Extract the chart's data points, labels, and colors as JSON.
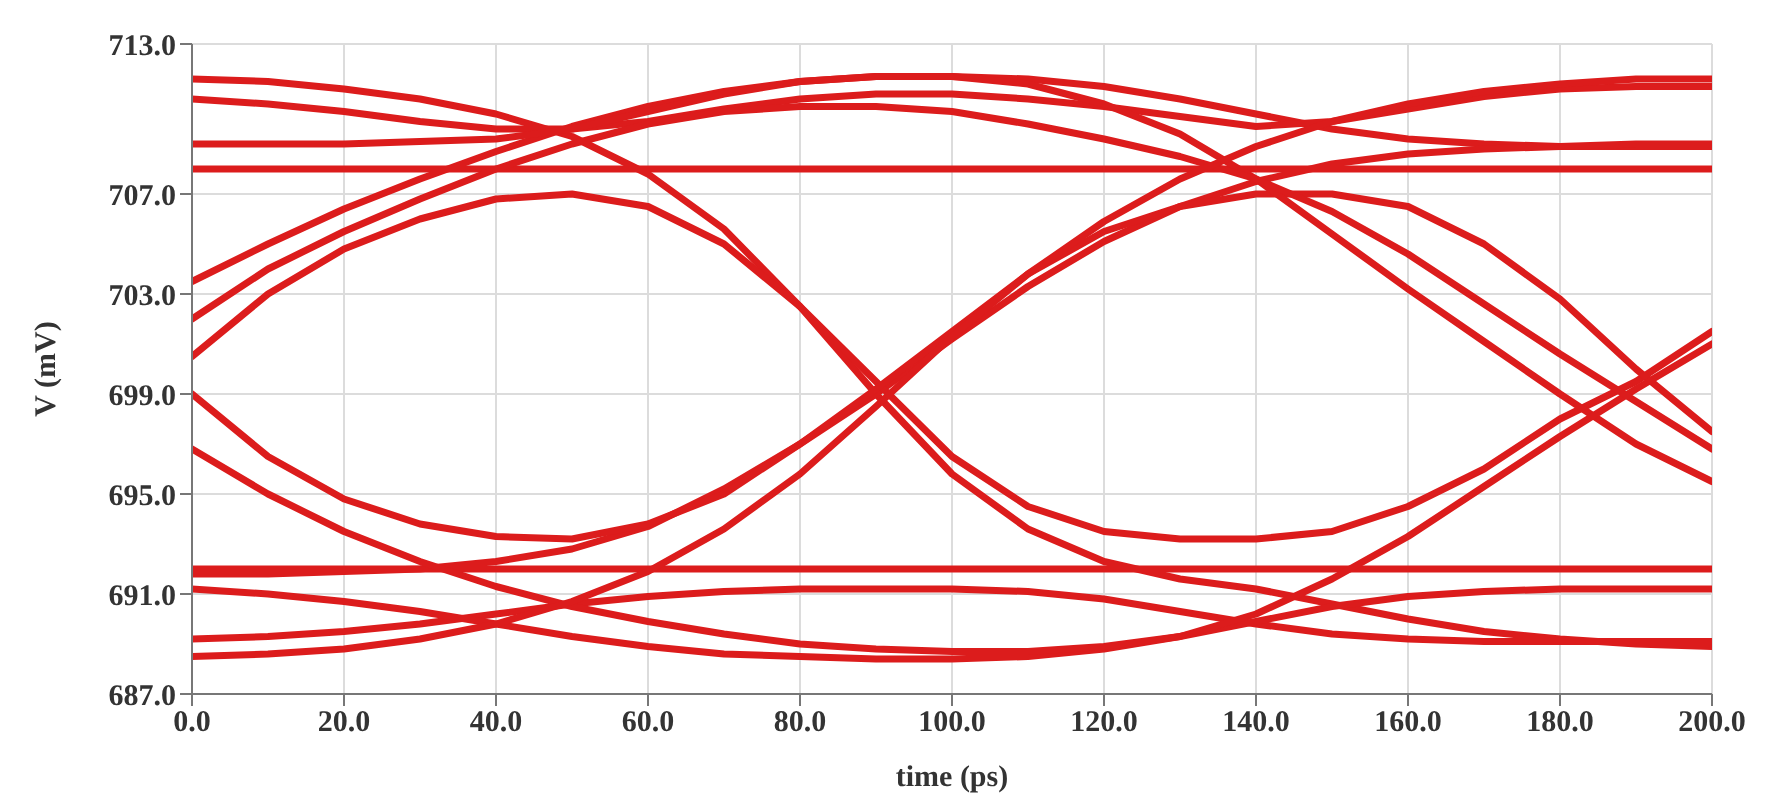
{
  "chart_data": {
    "type": "line",
    "xlabel": "time (ps)",
    "ylabel": "V (mV)",
    "x": [
      0,
      10,
      20,
      30,
      40,
      50,
      60,
      70,
      80,
      90,
      100,
      110,
      120,
      130,
      140,
      150,
      160,
      170,
      180,
      190,
      200
    ],
    "series": [
      {
        "color": "#dc1c1c",
        "values": [
          703.5,
          705,
          706.4,
          707.6,
          708.7,
          709.7,
          710.5,
          711.1,
          711.5,
          711.7,
          711.7,
          711.6,
          711.3,
          710.8,
          710.2,
          709.6,
          709.2,
          709.0,
          708.9,
          708.9,
          708.9
        ]
      },
      {
        "color": "#dc1c1c",
        "values": [
          711.6,
          711.5,
          711.2,
          710.8,
          710.2,
          709.3,
          707.8,
          705.6,
          702.5,
          699,
          695.8,
          693.6,
          692.3,
          691.6,
          691.2,
          690.6,
          690,
          689.5,
          689.2,
          689,
          688.9
        ]
      },
      {
        "color": "#dc1c1c",
        "values": [
          691.8,
          691.8,
          691.9,
          692,
          692.3,
          692.8,
          693.7,
          695.2,
          697,
          699,
          701.2,
          703.3,
          705.1,
          706.5,
          707.5,
          708.2,
          708.6,
          708.8,
          708.9,
          709,
          709
        ]
      },
      {
        "color": "#dc1c1c",
        "values": [
          700.5,
          703,
          704.8,
          706,
          706.8,
          707,
          706.5,
          705,
          702.5,
          699.5,
          696.5,
          694.5,
          693.5,
          693.2,
          693.2,
          693.5,
          694.5,
          696,
          698,
          699.5,
          701.5
        ]
      },
      {
        "color": "#dc1c1c",
        "values": [
          699,
          696.5,
          694.8,
          693.8,
          693.3,
          693.2,
          693.8,
          695,
          697,
          699.2,
          701.5,
          703.8,
          705.5,
          706.5,
          707,
          707,
          706.5,
          705,
          702.8,
          700,
          697.5
        ]
      },
      {
        "color": "#dc1c1c",
        "values": [
          692,
          692,
          692,
          692,
          692,
          692,
          692,
          692,
          692,
          692,
          692,
          692,
          692,
          692,
          692,
          692,
          692,
          692,
          692,
          692,
          692
        ]
      },
      {
        "color": "#dc1c1c",
        "values": [
          689.2,
          689.3,
          689.5,
          689.8,
          690.2,
          690.6,
          690.9,
          691.1,
          691.2,
          691.2,
          691.2,
          691.1,
          690.8,
          690.3,
          689.8,
          689.4,
          689.2,
          689.1,
          689.1,
          689.1,
          689.1
        ]
      },
      {
        "color": "#dc1c1c",
        "values": [
          691.2,
          691,
          690.7,
          690.3,
          689.8,
          689.3,
          688.9,
          688.6,
          688.5,
          688.4,
          688.4,
          688.5,
          688.8,
          689.3,
          689.9,
          690.5,
          690.9,
          691.1,
          691.2,
          691.2,
          691.2
        ]
      },
      {
        "color": "#dc1c1c",
        "values": [
          708,
          708,
          708,
          708,
          708,
          708,
          708,
          708,
          708,
          708,
          708,
          708,
          708,
          708,
          708,
          708,
          708,
          708,
          708,
          708,
          708
        ]
      },
      {
        "color": "#dc1c1c",
        "values": [
          710.8,
          710.6,
          710.3,
          709.9,
          709.6,
          709.6,
          709.9,
          710.4,
          710.8,
          711,
          711,
          710.8,
          710.5,
          710.1,
          709.7,
          709.9,
          710.4,
          710.9,
          711.2,
          711.3,
          711.3
        ]
      },
      {
        "color": "#dc1c1c",
        "values": [
          709,
          709,
          709,
          709.1,
          709.2,
          709.6,
          710.3,
          711,
          711.5,
          711.7,
          711.7,
          711.4,
          710.6,
          709.4,
          707.6,
          705.4,
          703.2,
          701.1,
          699,
          697,
          695.5
        ]
      },
      {
        "color": "#dc1c1c",
        "values": [
          696.8,
          695,
          693.5,
          692.3,
          691.3,
          690.5,
          689.9,
          689.4,
          689,
          688.8,
          688.7,
          688.7,
          688.9,
          689.3,
          690.2,
          691.6,
          693.3,
          695.3,
          697.3,
          699.2,
          701
        ]
      },
      {
        "color": "#dc1c1c",
        "values": [
          702,
          704,
          705.5,
          706.8,
          708,
          709,
          709.8,
          710.3,
          710.5,
          710.5,
          710.3,
          709.8,
          709.2,
          708.5,
          707.6,
          706.3,
          704.6,
          702.6,
          700.6,
          698.7,
          696.8
        ]
      },
      {
        "color": "#dc1c1c",
        "values": [
          688.5,
          688.6,
          688.8,
          689.2,
          689.8,
          690.7,
          691.9,
          693.6,
          695.8,
          698.5,
          701.3,
          703.8,
          705.9,
          707.6,
          708.9,
          709.9,
          710.6,
          711.1,
          711.4,
          711.6,
          711.6
        ]
      }
    ],
    "xlim": [
      0,
      200
    ],
    "xticks": [
      {
        "value": 0,
        "label": "0.0"
      },
      {
        "value": 20,
        "label": "20.0"
      },
      {
        "value": 40,
        "label": "40.0"
      },
      {
        "value": 60,
        "label": "60.0"
      },
      {
        "value": 80,
        "label": "80.0"
      },
      {
        "value": 100,
        "label": "100.0"
      },
      {
        "value": 120,
        "label": "120.0"
      },
      {
        "value": 140,
        "label": "140.0"
      },
      {
        "value": 160,
        "label": "160.0"
      },
      {
        "value": 180,
        "label": "180.0"
      },
      {
        "value": 200,
        "label": "200.0"
      }
    ],
    "ylim": [
      687,
      713
    ],
    "yticks": [
      {
        "value": 687,
        "label": "687.0"
      },
      {
        "value": 691,
        "label": "691.0"
      },
      {
        "value": 695,
        "label": "695.0"
      },
      {
        "value": 699,
        "label": "699.0"
      },
      {
        "value": 703,
        "label": "703.0"
      },
      {
        "value": 707,
        "label": "707.0"
      },
      {
        "value": 713,
        "label": "713.0"
      }
    ],
    "grid": true,
    "marker": "none",
    "line_style": "solid"
  }
}
